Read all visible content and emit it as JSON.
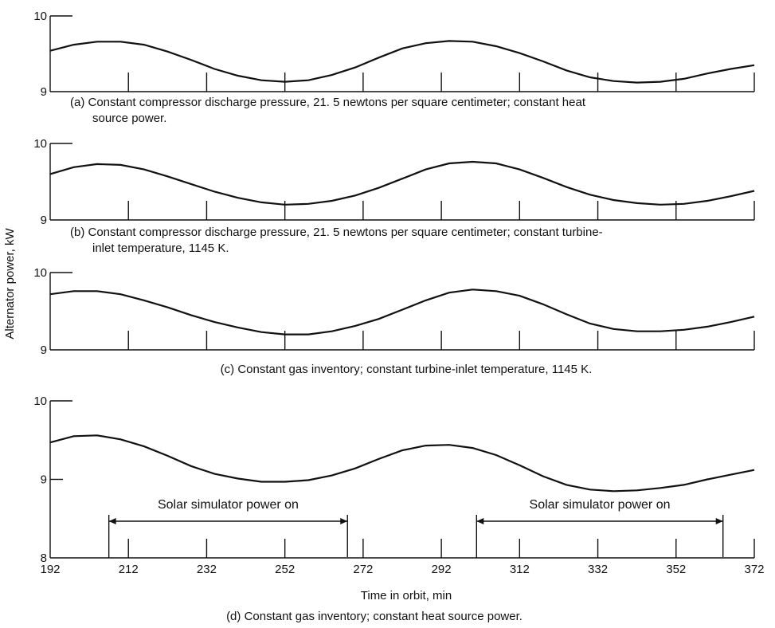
{
  "figure": {
    "ylabel": "Alternator power, kW",
    "xlabel": "Time in orbit, min"
  },
  "chart_data": [
    {
      "type": "line",
      "panel": "a",
      "caption": [
        "(a) Constant compressor discharge pressure, 21. 5 newtons per square centimeter; constant heat",
        "source power."
      ],
      "ylim": [
        9,
        10
      ],
      "ytick_labels": [
        "10",
        "9"
      ],
      "xlim": [
        192,
        372
      ],
      "x": [
        192,
        198,
        204,
        210,
        216,
        222,
        228,
        234,
        240,
        246,
        252,
        258,
        264,
        270,
        276,
        282,
        288,
        294,
        300,
        306,
        312,
        318,
        324,
        330,
        336,
        342,
        348,
        354,
        360,
        366,
        372
      ],
      "y": [
        9.54,
        9.62,
        9.66,
        9.66,
        9.62,
        9.53,
        9.42,
        9.3,
        9.21,
        9.15,
        9.13,
        9.15,
        9.22,
        9.32,
        9.45,
        9.57,
        9.64,
        9.67,
        9.66,
        9.6,
        9.51,
        9.4,
        9.28,
        9.19,
        9.14,
        9.12,
        9.13,
        9.17,
        9.24,
        9.3,
        9.35
      ]
    },
    {
      "type": "line",
      "panel": "b",
      "caption": [
        "(b) Constant compressor discharge pressure, 21. 5 newtons per square centimeter; constant turbine-",
        "inlet temperature, 1145 K."
      ],
      "ylim": [
        9,
        10
      ],
      "ytick_labels": [
        "10",
        "9"
      ],
      "xlim": [
        192,
        372
      ],
      "x": [
        192,
        198,
        204,
        210,
        216,
        222,
        228,
        234,
        240,
        246,
        252,
        258,
        264,
        270,
        276,
        282,
        288,
        294,
        300,
        306,
        312,
        318,
        324,
        330,
        336,
        342,
        348,
        354,
        360,
        366,
        372
      ],
      "y": [
        9.6,
        9.69,
        9.73,
        9.72,
        9.66,
        9.57,
        9.47,
        9.37,
        9.29,
        9.23,
        9.2,
        9.21,
        9.25,
        9.32,
        9.42,
        9.54,
        9.66,
        9.74,
        9.76,
        9.74,
        9.66,
        9.55,
        9.43,
        9.33,
        9.26,
        9.22,
        9.2,
        9.21,
        9.25,
        9.31,
        9.38
      ]
    },
    {
      "type": "line",
      "panel": "c",
      "caption": [
        "(c) Constant gas inventory; constant turbine-inlet temperature, 1145 K."
      ],
      "ylim": [
        9,
        10
      ],
      "ytick_labels": [
        "10",
        "9"
      ],
      "xlim": [
        192,
        372
      ],
      "x": [
        192,
        198,
        204,
        210,
        216,
        222,
        228,
        234,
        240,
        246,
        252,
        258,
        264,
        270,
        276,
        282,
        288,
        294,
        300,
        306,
        312,
        318,
        324,
        330,
        336,
        342,
        348,
        354,
        360,
        366,
        372
      ],
      "y": [
        9.72,
        9.76,
        9.76,
        9.72,
        9.64,
        9.55,
        9.45,
        9.36,
        9.29,
        9.23,
        9.2,
        9.2,
        9.24,
        9.31,
        9.4,
        9.52,
        9.64,
        9.74,
        9.78,
        9.76,
        9.7,
        9.59,
        9.46,
        9.34,
        9.27,
        9.24,
        9.24,
        9.26,
        9.3,
        9.36,
        9.43
      ]
    },
    {
      "type": "line",
      "panel": "d",
      "caption": [
        "(d) Constant gas inventory; constant heat source power."
      ],
      "ylim": [
        8,
        10
      ],
      "ytick_labels": [
        "10",
        "9",
        "8"
      ],
      "xlim": [
        192,
        372
      ],
      "xtick_labels": [
        "192",
        "212",
        "232",
        "252",
        "272",
        "292",
        "312",
        "332",
        "352",
        "372"
      ],
      "x": [
        192,
        198,
        204,
        210,
        216,
        222,
        228,
        234,
        240,
        246,
        252,
        258,
        264,
        270,
        276,
        282,
        288,
        294,
        300,
        306,
        312,
        318,
        324,
        330,
        336,
        342,
        348,
        354,
        360,
        366,
        372
      ],
      "y": [
        9.47,
        9.55,
        9.56,
        9.51,
        9.42,
        9.3,
        9.17,
        9.07,
        9.01,
        8.97,
        8.97,
        8.99,
        9.05,
        9.14,
        9.26,
        9.37,
        9.43,
        9.44,
        9.4,
        9.31,
        9.18,
        9.04,
        8.93,
        8.87,
        8.85,
        8.86,
        8.89,
        8.93,
        9.0,
        9.06,
        9.12
      ],
      "annotations": [
        {
          "text": "Solar simulator power on",
          "x_start": 207,
          "x_end": 268
        },
        {
          "text": "Solar simulator power on",
          "x_start": 301,
          "x_end": 364
        }
      ]
    }
  ]
}
